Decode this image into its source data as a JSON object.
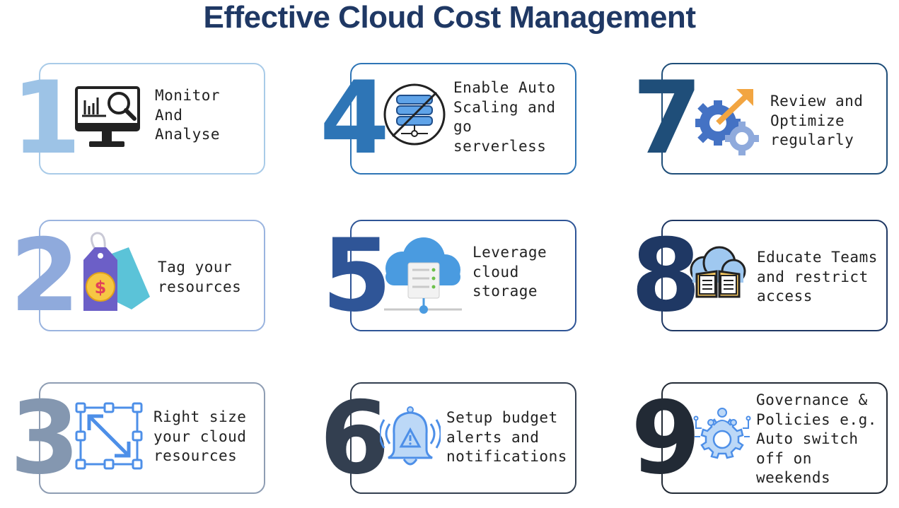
{
  "title": "Effective Cloud Cost Management",
  "steps": [
    {
      "number": "1",
      "label": "Monitor\nAnd\nAnalyse",
      "icon": "monitor-analytics-icon",
      "color": "#9dc3e6"
    },
    {
      "number": "2",
      "label": "Tag your\nresources",
      "icon": "price-tag-icon",
      "color": "#8faadc"
    },
    {
      "number": "3",
      "label": "Right size\nyour cloud\nresources",
      "icon": "resize-icon",
      "color": "#8497b0"
    },
    {
      "number": "4",
      "label": "Enable Auto\nScaling  and\ngo\nserverless",
      "icon": "serverless-icon",
      "color": "#2e75b6"
    },
    {
      "number": "5",
      "label": "Leverage\ncloud\nstorage",
      "icon": "cloud-storage-icon",
      "color": "#2f5597"
    },
    {
      "number": "6",
      "label": "Setup budget\nalerts and\nnotifications",
      "icon": "alert-bell-icon",
      "color": "#333f50"
    },
    {
      "number": "7",
      "label": "Review and\nOptimize\nregularly",
      "icon": "gears-optimize-icon",
      "color": "#1f4e79"
    },
    {
      "number": "8",
      "label": "Educate Teams\nand restrict\naccess",
      "icon": "cloud-book-icon",
      "color": "#1f3864"
    },
    {
      "number": "9",
      "label": "Governance &\nPolicies e.g.\nAuto switch\noff on\nweekends",
      "icon": "governance-gear-icon",
      "color": "#222a35"
    }
  ]
}
